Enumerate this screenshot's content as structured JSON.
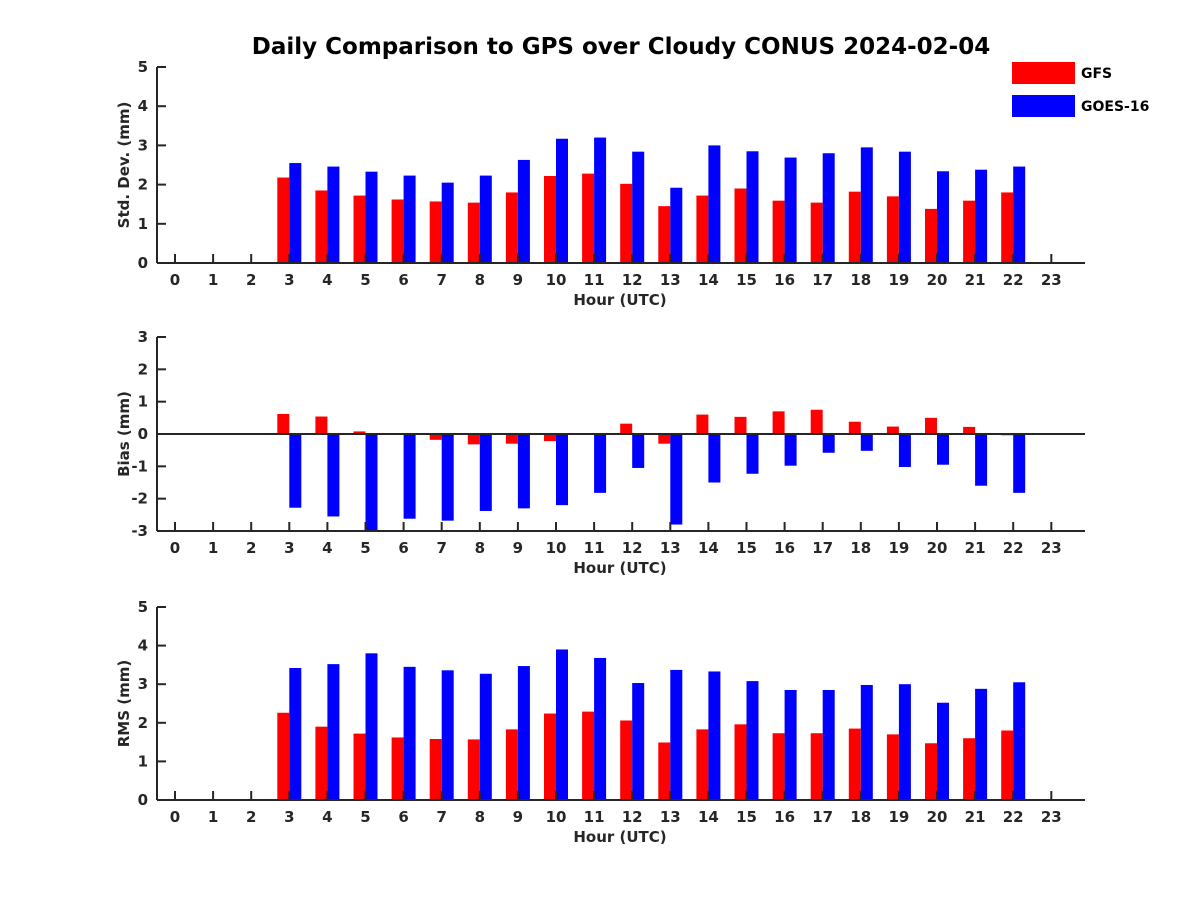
{
  "chart_data": {
    "type": "bar",
    "title": "Daily Comparison to GPS over Cloudy CONUS 2024-02-04",
    "legend": {
      "placement": "top-right",
      "entries": [
        {
          "name": "GFS",
          "color": "#ff0000"
        },
        {
          "name": "GOES-16",
          "color": "#0000ff"
        }
      ]
    },
    "categories": [
      "0",
      "1",
      "2",
      "3",
      "4",
      "5",
      "6",
      "7",
      "8",
      "9",
      "10",
      "11",
      "12",
      "13",
      "14",
      "15",
      "16",
      "17",
      "18",
      "19",
      "20",
      "21",
      "22",
      "23"
    ],
    "panels": [
      {
        "id": "std",
        "ylabel": "Std. Dev. (mm)",
        "xlabel": "Hour (UTC)",
        "ylim": [
          0,
          5
        ],
        "yticks": [
          0,
          1,
          2,
          3,
          4,
          5
        ],
        "series": [
          {
            "name": "GFS",
            "values": [
              null,
              null,
              null,
              2.18,
              1.85,
              1.72,
              1.62,
              1.57,
              1.54,
              1.8,
              2.22,
              2.28,
              2.02,
              1.45,
              1.72,
              1.9,
              1.59,
              1.54,
              1.82,
              1.7,
              1.38,
              1.59,
              1.8,
              null
            ]
          },
          {
            "name": "GOES-16",
            "values": [
              null,
              null,
              null,
              2.55,
              2.46,
              2.33,
              2.23,
              2.05,
              2.23,
              2.63,
              3.17,
              3.2,
              2.84,
              1.92,
              3.0,
              2.85,
              2.69,
              2.8,
              2.95,
              2.84,
              2.34,
              2.38,
              2.46,
              null
            ]
          }
        ]
      },
      {
        "id": "bias",
        "ylabel": "Bias (mm)",
        "xlabel": "Hour (UTC)",
        "ylim": [
          -3,
          3
        ],
        "yticks": [
          -3,
          -2,
          -1,
          0,
          1,
          2,
          3
        ],
        "series": [
          {
            "name": "GFS",
            "values": [
              null,
              null,
              null,
              0.62,
              0.54,
              0.08,
              0.02,
              -0.18,
              -0.32,
              -0.3,
              -0.22,
              0.02,
              0.32,
              -0.3,
              0.6,
              0.53,
              0.7,
              0.75,
              0.38,
              0.23,
              0.5,
              0.22,
              -0.04,
              null
            ]
          },
          {
            "name": "GOES-16",
            "values": [
              null,
              null,
              null,
              -2.28,
              -2.55,
              -3.0,
              -2.62,
              -2.68,
              -2.38,
              -2.3,
              -2.2,
              -1.82,
              -1.05,
              -2.8,
              -1.5,
              -1.23,
              -0.98,
              -0.58,
              -0.52,
              -1.02,
              -0.95,
              -1.6,
              -1.82,
              null
            ]
          }
        ]
      },
      {
        "id": "rms",
        "ylabel": "RMS (mm)",
        "xlabel": "Hour (UTC)",
        "ylim": [
          0,
          5
        ],
        "yticks": [
          0,
          1,
          2,
          3,
          4,
          5
        ],
        "series": [
          {
            "name": "GFS",
            "values": [
              null,
              null,
              null,
              2.26,
              1.9,
              1.72,
              1.62,
              1.58,
              1.57,
              1.83,
              2.24,
              2.29,
              2.06,
              1.49,
              1.83,
              1.96,
              1.73,
              1.73,
              1.85,
              1.7,
              1.47,
              1.6,
              1.8,
              null
            ]
          },
          {
            "name": "GOES-16",
            "values": [
              null,
              null,
              null,
              3.42,
              3.52,
              3.8,
              3.45,
              3.36,
              3.27,
              3.47,
              3.9,
              3.68,
              3.03,
              3.37,
              3.33,
              3.08,
              2.85,
              2.85,
              2.98,
              3.0,
              2.52,
              2.88,
              3.05,
              null
            ]
          }
        ]
      }
    ]
  }
}
